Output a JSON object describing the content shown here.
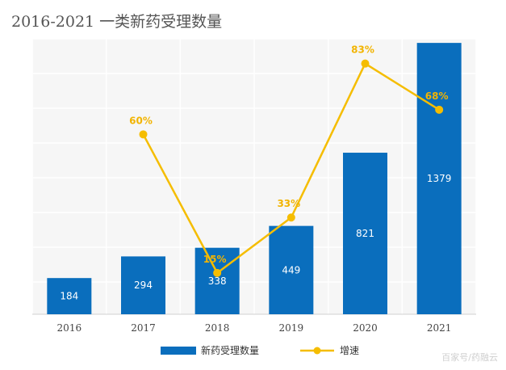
{
  "chart_data": {
    "type": "bar",
    "title": "2016-2021 一类新药受理数量",
    "categories": [
      "2016",
      "2017",
      "2018",
      "2019",
      "2020",
      "2021"
    ],
    "series": [
      {
        "name": "新药受理数量",
        "kind": "bar",
        "color": "#0a6ebd",
        "values": [
          184,
          294,
          338,
          449,
          821,
          1379
        ],
        "labels": [
          "184",
          "294",
          "338",
          "449",
          "821",
          "1379"
        ]
      },
      {
        "name": "增速",
        "kind": "line",
        "color": "#f5bd00",
        "values": [
          null,
          60,
          15,
          33,
          83,
          68
        ],
        "labels": [
          "",
          "60%",
          "15%",
          "33%",
          "83%",
          "68%"
        ]
      }
    ],
    "xlabel": "",
    "ylabel": "",
    "ylim_bar": [
      0,
      1400
    ],
    "ylim_line": [
      0,
      90
    ],
    "grid": true,
    "legend_position": "bottom"
  },
  "watermark": "百家号/药融云"
}
